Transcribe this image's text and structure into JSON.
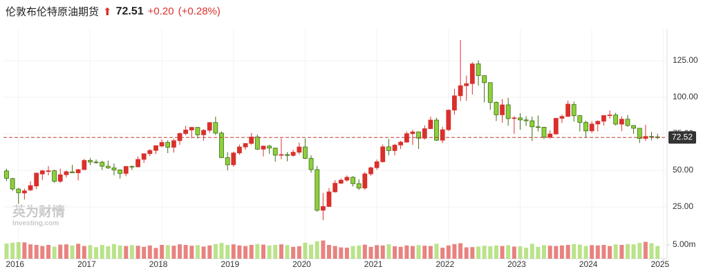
{
  "chart_data": {
    "type": "candlestick",
    "title": "伦敦布伦特原油期货",
    "last_price": 72.51,
    "change": "+0.20",
    "change_pct": "(+0.28%)",
    "watermark": {
      "brand": "英为财情",
      "site": "Investing.com"
    },
    "up_color": "#d9302c",
    "down_color": "#8cd03c",
    "grid": true,
    "price_line": 72.52,
    "x": [
      2015.833,
      2015.917,
      2016,
      2016.083,
      2016.167,
      2016.25,
      2016.333,
      2016.417,
      2016.5,
      2016.583,
      2016.667,
      2016.75,
      2016.833,
      2016.917,
      2017,
      2017.083,
      2017.167,
      2017.25,
      2017.333,
      2017.417,
      2017.5,
      2017.583,
      2017.667,
      2017.75,
      2017.833,
      2017.917,
      2018,
      2018.083,
      2018.167,
      2018.25,
      2018.333,
      2018.417,
      2018.5,
      2018.583,
      2018.667,
      2018.75,
      2018.833,
      2018.917,
      2019,
      2019.083,
      2019.167,
      2019.25,
      2019.333,
      2019.417,
      2019.5,
      2019.583,
      2019.667,
      2019.75,
      2019.833,
      2019.917,
      2020,
      2020.083,
      2020.167,
      2020.25,
      2020.333,
      2020.417,
      2020.5,
      2020.583,
      2020.667,
      2020.75,
      2020.833,
      2020.917,
      2021,
      2021.083,
      2021.167,
      2021.25,
      2021.333,
      2021.417,
      2021.5,
      2021.583,
      2021.667,
      2021.75,
      2021.833,
      2021.917,
      2022,
      2022.083,
      2022.167,
      2022.25,
      2022.333,
      2022.417,
      2022.5,
      2022.583,
      2022.667,
      2022.75,
      2022.833,
      2022.917,
      2023,
      2023.083,
      2023.167,
      2023.25,
      2023.333,
      2023.417,
      2023.5,
      2023.583,
      2023.667,
      2023.75,
      2023.833,
      2023.917,
      2024,
      2024.083,
      2024.167,
      2024.25,
      2024.333,
      2024.417,
      2024.5,
      2024.583,
      2024.667,
      2024.75,
      2024.833,
      2024.917
    ],
    "open": [
      49.6,
      44.4,
      37.2,
      34.5,
      36.6,
      39.3,
      47.5,
      49.7,
      49.7,
      42.5,
      47.0,
      49.0,
      48.3,
      50.5,
      56.8,
      55.7,
      55.6,
      52.8,
      51.7,
      50.3,
      47.9,
      52.7,
      52.4,
      57.5,
      61.4,
      63.6,
      66.6,
      69.1,
      65.8,
      70.3,
      75.2,
      77.6,
      79.4,
      74.3,
      77.4,
      82.7,
      75.5,
      58.7,
      53.8,
      61.9,
      66.0,
      68.4,
      72.8,
      64.5,
      66.6,
      65.2,
      60.4,
      60.8,
      60.2,
      62.4,
      66.0,
      58.2,
      50.5,
      22.7,
      25.3,
      35.3,
      41.2,
      43.3,
      45.3,
      40.9,
      37.9,
      47.6,
      51.8,
      55.9,
      66.1,
      63.5,
      67.3,
      69.3,
      75.1,
      76.3,
      72.0,
      78.5,
      84.4,
      70.6,
      77.8,
      91.2,
      101.0,
      107.9,
      109.3,
      122.8,
      114.8,
      110.0,
      96.5,
      88.0,
      94.8,
      85.4,
      85.9,
      84.5,
      83.9,
      79.8,
      79.5,
      72.7,
      74.9,
      85.6,
      86.9,
      95.0,
      87.4,
      82.8,
      77.0,
      81.7,
      83.6,
      87.5,
      87.9,
      81.6,
      85.0,
      80.7,
      78.8,
      71.8,
      73.2,
      72.9
    ],
    "high": [
      51.1,
      44.9,
      37.9,
      37.5,
      42.5,
      48.5,
      50.5,
      52.9,
      50.5,
      51.2,
      49.9,
      53.7,
      51.0,
      57.9,
      58.4,
      57.4,
      56.6,
      56.7,
      54.7,
      50.8,
      52.9,
      53.4,
      59.5,
      61.4,
      64.6,
      67.0,
      71.3,
      70.6,
      71.6,
      75.9,
      80.5,
      79.8,
      79.6,
      78.2,
      82.9,
      86.7,
      76.6,
      62.5,
      62.8,
      67.6,
      68.7,
      75.6,
      74.5,
      67.0,
      67.5,
      65.5,
      71.9,
      62.5,
      64.0,
      69.0,
      71.8,
      60.3,
      53.0,
      34.6,
      37.9,
      43.4,
      44.6,
      46.5,
      46.0,
      43.9,
      49.0,
      52.5,
      57.4,
      67.7,
      71.4,
      68.1,
      70.3,
      76.7,
      77.8,
      76.5,
      80.8,
      86.7,
      86.0,
      79.8,
      91.7,
      105.8,
      139.1,
      114.8,
      124.0,
      125.2,
      115.0,
      110.1,
      97.2,
      98.8,
      99.6,
      87.0,
      89.1,
      86.9,
      86.8,
      87.5,
      79.8,
      77.3,
      85.6,
      88.1,
      97.7,
      97.0,
      87.9,
      84.0,
      83.6,
      84.1,
      87.7,
      91.0,
      89.4,
      87.0,
      87.9,
      81.0,
      78.8,
      81.2,
      76.3,
      74.9
    ],
    "low": [
      42.7,
      36.0,
      27.1,
      30.0,
      35.8,
      37.2,
      43.3,
      46.6,
      41.5,
      41.5,
      45.0,
      48.2,
      43.1,
      50.4,
      53.6,
      54.5,
      50.3,
      51.0,
      46.6,
      44.4,
      46.0,
      50.3,
      52.1,
      55.1,
      59.8,
      61.1,
      65.8,
      61.8,
      62.1,
      67.4,
      74.0,
      71.9,
      71.8,
      70.3,
      75.7,
      74.2,
      58.4,
      50.0,
      52.5,
      60.6,
      64.1,
      67.6,
      63.9,
      59.5,
      61.2,
      55.9,
      57.7,
      56.2,
      59.3,
      60.9,
      57.7,
      48.4,
      21.7,
      15.9,
      24.9,
      34.8,
      40.6,
      42.2,
      38.9,
      36.6,
      36.6,
      46.3,
      50.4,
      55.3,
      60.3,
      60.3,
      64.6,
      68.9,
      67.4,
      64.6,
      71.0,
      78.3,
      70.2,
      68.6,
      77.0,
      88.0,
      97.4,
      97.6,
      101.8,
      108.0,
      96.5,
      91.5,
      83.7,
      82.6,
      80.6,
      75.1,
      77.8,
      80.4,
      70.1,
      76.6,
      71.4,
      71.5,
      74.4,
      82.4,
      86.5,
      83.4,
      76.6,
      72.3,
      75.7,
      76.6,
      80.6,
      85.5,
      80.7,
      76.8,
      79.7,
      75.1,
      68.7,
      70.1,
      70.5,
      71.3
    ],
    "close": [
      44.6,
      37.3,
      34.7,
      36.0,
      39.6,
      48.1,
      49.7,
      49.7,
      42.5,
      47.0,
      49.1,
      48.3,
      50.5,
      56.8,
      55.7,
      55.6,
      52.8,
      51.7,
      50.3,
      47.9,
      52.7,
      52.4,
      57.5,
      61.4,
      63.6,
      66.9,
      69.1,
      65.8,
      70.3,
      75.2,
      77.6,
      79.4,
      74.3,
      77.4,
      82.7,
      75.5,
      58.7,
      53.8,
      61.9,
      66.0,
      68.4,
      72.8,
      64.5,
      66.6,
      65.2,
      60.4,
      60.8,
      60.2,
      62.4,
      66.0,
      58.2,
      50.5,
      22.7,
      25.3,
      35.3,
      41.2,
      43.3,
      45.3,
      40.9,
      37.9,
      47.6,
      51.8,
      55.9,
      66.1,
      63.5,
      67.3,
      69.3,
      75.1,
      76.3,
      72.0,
      78.5,
      84.4,
      70.6,
      77.8,
      91.2,
      101.0,
      107.9,
      109.3,
      122.8,
      114.8,
      110.0,
      96.5,
      88.0,
      94.8,
      85.4,
      85.9,
      84.5,
      83.9,
      79.8,
      79.5,
      72.7,
      74.9,
      85.6,
      86.9,
      95.3,
      87.4,
      82.8,
      77.0,
      81.7,
      83.6,
      87.5,
      87.9,
      81.6,
      85.0,
      80.7,
      78.8,
      71.8,
      73.2,
      72.9,
      72.5
    ],
    "volume": [
      5.5,
      5.8,
      6.0,
      5.9,
      5.2,
      5.0,
      4.6,
      5.0,
      4.4,
      5.1,
      5.2,
      4.8,
      5.4,
      4.6,
      4.9,
      4.2,
      5.0,
      4.5,
      5.3,
      4.8,
      4.6,
      4.9,
      4.7,
      4.3,
      4.8,
      3.9,
      5.0,
      4.9,
      4.7,
      5.2,
      5.0,
      4.7,
      4.9,
      4.4,
      4.8,
      5.3,
      5.7,
      5.0,
      5.2,
      4.8,
      4.6,
      5.0,
      5.3,
      5.1,
      4.8,
      5.0,
      5.2,
      4.9,
      4.3,
      4.5,
      5.8,
      5.1,
      6.3,
      6.6,
      5.0,
      4.6,
      4.1,
      4.0,
      4.6,
      4.8,
      5.1,
      4.3,
      4.9,
      4.8,
      5.2,
      4.5,
      4.3,
      4.8,
      4.6,
      4.9,
      4.7,
      4.6,
      5.4,
      4.0,
      4.8,
      5.3,
      5.6,
      4.1,
      4.2,
      4.4,
      4.7,
      4.5,
      4.8,
      4.6,
      4.9,
      4.4,
      4.5,
      4.0,
      5.4,
      4.3,
      4.9,
      4.7,
      4.6,
      4.8,
      5.0,
      5.3,
      5.1,
      4.6,
      4.9,
      4.8,
      5.0,
      4.6,
      5.2,
      5.0,
      5.3,
      5.2,
      5.7,
      6.1,
      5.6,
      4.6
    ],
    "xlim": [
      2015.79,
      2025.05
    ],
    "xticks": [
      2016,
      2017,
      2018,
      2019,
      2020,
      2021,
      2022,
      2023,
      2024,
      2025
    ],
    "ylim": [
      6.1,
      146.7
    ],
    "yticks": [
      {
        "value": 25,
        "label": "25.00"
      },
      {
        "value": 50,
        "label": "50.00"
      },
      {
        "value": 75,
        "label": "75.00"
      },
      {
        "value": 100,
        "label": "100.00"
      },
      {
        "value": 125,
        "label": "125.00"
      }
    ],
    "volume_ylim": [
      0,
      8
    ],
    "volume_yticks": [
      {
        "value": 5,
        "label": "5.00m"
      }
    ]
  }
}
